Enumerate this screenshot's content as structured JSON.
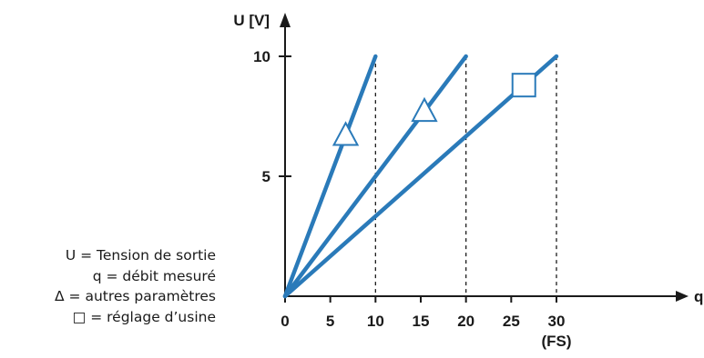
{
  "chart_data": {
    "type": "line",
    "xlabel": "q [l/min]",
    "ylabel": "U [V]",
    "xlim": [
      0,
      36
    ],
    "ylim": [
      0,
      10.5
    ],
    "x_ticks": [
      0,
      5,
      10,
      15,
      20,
      25,
      30
    ],
    "x_tick_labels": [
      "0",
      "5",
      "10",
      "15",
      "20",
      "25",
      "30"
    ],
    "x_tick_sublabel": {
      "value": 30,
      "text": "(FS)"
    },
    "y_ticks": [
      5,
      10
    ],
    "y_tick_labels": [
      "5",
      "10"
    ],
    "grid": false,
    "dashed_guides_at_x": [
      10,
      20,
      30
    ],
    "series": [
      {
        "x": [
          0,
          10
        ],
        "y": [
          0,
          10
        ],
        "marker": "triangle",
        "marker_at": [
          6.7,
          6.7
        ]
      },
      {
        "x": [
          0,
          20
        ],
        "y": [
          0,
          10
        ],
        "marker": "triangle",
        "marker_at": [
          15.4,
          7.7
        ]
      },
      {
        "x": [
          0,
          30
        ],
        "y": [
          0,
          10
        ],
        "marker": "square",
        "marker_at": [
          26.4,
          8.8
        ]
      }
    ],
    "line_color": "#2a7ab9",
    "axis_color": "#1a1a1a"
  },
  "legend": {
    "items": [
      "U = Tension de sortie",
      "q = débit mesuré",
      "Δ = autres paramètres",
      "□ = réglage d’usine"
    ]
  }
}
